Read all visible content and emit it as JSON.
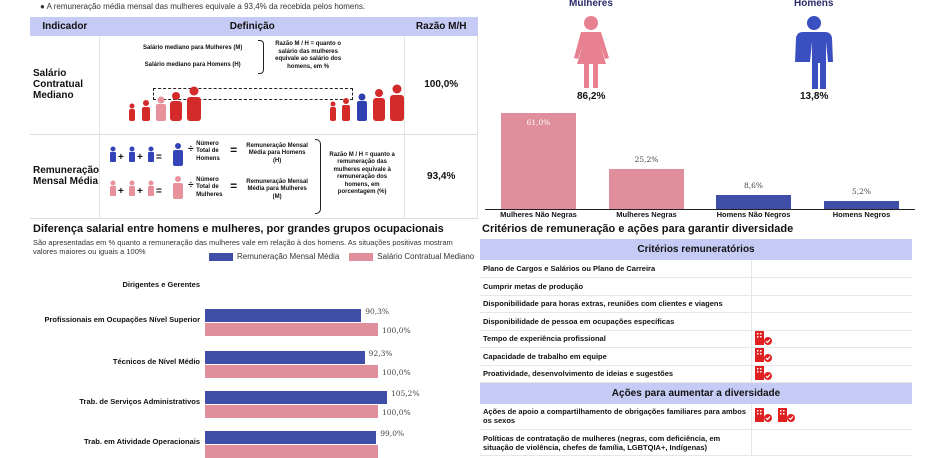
{
  "bullet": "A remuneração média mensal das mulheres equivale a 93,4% da recebida pelos homens.",
  "table": {
    "headers": [
      "Indicador",
      "Definição",
      "Razão M/H"
    ],
    "rows": [
      {
        "indicador": "Salário Contratual Mediano",
        "line1": "Salário mediano para Mulheres (M)",
        "line2": "Salário mediano para Homens (H)",
        "note": "Razão M / H = quanto o salário das mulheres equivale ao salário dos homens, em %",
        "ratio": "100,0%"
      },
      {
        "indicador": "Remuneração Mensal Média",
        "num_h": "Número Total de Homens",
        "res_h": "Remuneração Mensal Média para Homens (H)",
        "num_m": "Número Total de Mulheres",
        "res_m": "Remuneração Mensal Média para Mulheres (M)",
        "note": "Razão M / H = quanto a remuneração das mulheres equivale à remuneração dos homens, em porcentagem (%)",
        "ratio": "93,4%"
      }
    ]
  },
  "occ": {
    "title": "Diferença salarial entre homens e mulheres, por grandes grupos ocupacionais",
    "subtitle": "São apresentadas em % quanto a remuneração das mulheres vale em relação à dos homens. As situações positivas mostram valores maiores ou iguais a 100%"
  },
  "chart_data": [
    {
      "type": "bar",
      "orientation": "horizontal",
      "categories": [
        "Dirigentes e Gerentes",
        "Profissionais em Ocupações Nível Superior",
        "Técnicos de Nível Médio",
        "Trab. de Serviços Administrativos",
        "Trab. em Atividade Operacionais"
      ],
      "series": [
        {
          "name": "Remuneração Mensal Média",
          "color": "#3f4fa8",
          "values": [
            null,
            90.3,
            92.3,
            105.2,
            99.0
          ],
          "labels": [
            "",
            "90,3%",
            "92,3%",
            "105,2%",
            "99,0%"
          ]
        },
        {
          "name": "Salário Contratual Mediano",
          "color": "#e08e9c",
          "values": [
            null,
            100.0,
            100.0,
            100.0,
            100.0
          ],
          "labels": [
            "",
            "100,0%",
            "100,0%",
            "100,0%",
            ""
          ]
        }
      ],
      "legend": "top-right"
    },
    {
      "type": "bar",
      "categories": [
        "Mulheres Não Negras",
        "Mulheres Negras",
        "Homens Não Negros",
        "Homens Negros"
      ],
      "values": [
        61.0,
        25.2,
        8.6,
        5.2
      ],
      "labels": [
        "61,0%",
        "25,2%",
        "8,6%",
        "5,2%"
      ],
      "colors": [
        "#e08e9c",
        "#e08e9c",
        "#3f4fa8",
        "#3f4fa8"
      ]
    }
  ],
  "gender": {
    "women_label": "Mulheres",
    "women_pct": "86,2%",
    "men_label": "Homens",
    "men_pct": "13,8%",
    "women_color": "#e8818f",
    "men_color": "#3a4fc0"
  },
  "criteria": {
    "title": "Critérios de remuneração e ações para garantir diversidade",
    "header1": "Critérios remuneratórios",
    "items": [
      {
        "label": "Plano de Cargos e Salários ou Plano de Carreira",
        "icons": 0
      },
      {
        "label": "Cumprir metas de produção",
        "icons": 0
      },
      {
        "label": "Disponibilidade para horas extras, reuniões com clientes e viagens",
        "icons": 0
      },
      {
        "label": "Disponibilidade de pessoa em ocupações específicas",
        "icons": 0
      },
      {
        "label": "Tempo de experiência profissional",
        "icons": 1
      },
      {
        "label": "Capacidade de trabalho em equipe",
        "icons": 1
      },
      {
        "label": "Proatividade, desenvolvimento de ideias e sugestões",
        "icons": 1
      }
    ],
    "header2": "Ações para aumentar a diversidade",
    "actions": [
      {
        "label": "Ações de apoio a compartilhamento de obrigações familiares para ambos os sexos",
        "icons": 2
      },
      {
        "label": "Políticas de contratação de mulheres (negras, com deficiência, em situação de violência, chefes de família, LGBTQIA+, Indígenas)",
        "icons": 0
      }
    ],
    "icon": "company-check-icon",
    "icon_color": "#e02020"
  }
}
